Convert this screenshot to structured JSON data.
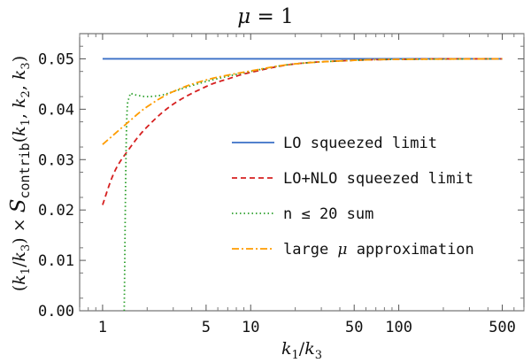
{
  "chart_data": {
    "type": "line",
    "title": "μ = 1",
    "xlabel": "k1/k3",
    "ylabel": "(k1/k3) × S_contrib(k1, k2, k3)",
    "x_scale": "log",
    "xlim": [
      0.7,
      700
    ],
    "ylim": [
      0,
      0.055
    ],
    "x_ticks": [
      1,
      5,
      10,
      50,
      100,
      500
    ],
    "x_tick_labels": [
      "1",
      "5",
      "10",
      "50",
      "100",
      "500"
    ],
    "y_ticks": [
      0.0,
      0.01,
      0.02,
      0.03,
      0.04,
      0.05
    ],
    "y_tick_labels": [
      "0.00",
      "0.01",
      "0.02",
      "0.03",
      "0.04",
      "0.05"
    ],
    "legend_position": "center-right",
    "series": [
      {
        "name": "LO squeezed limit",
        "color": "#3a6fc6",
        "style": "solid",
        "x": [
          1,
          500
        ],
        "y": [
          0.05,
          0.05
        ]
      },
      {
        "name": "LO+NLO squeezed limit",
        "color": "#d62020",
        "style": "dashed",
        "x": [
          1,
          1.2,
          1.5,
          2,
          3,
          5,
          7,
          10,
          20,
          50,
          100,
          200,
          500
        ],
        "y": [
          0.021,
          0.0275,
          0.032,
          0.0365,
          0.041,
          0.0445,
          0.046,
          0.0473,
          0.049,
          0.0497,
          0.0499,
          0.05,
          0.05
        ]
      },
      {
        "name": "n ≤ 20 sum",
        "color": "#2ca02c",
        "style": "dotted",
        "x": [
          1.4,
          1.45,
          1.52,
          1.6,
          1.7,
          2,
          2.5,
          3,
          5,
          10,
          20,
          50,
          100,
          500
        ],
        "y": [
          0.0,
          0.036,
          0.0425,
          0.043,
          0.0428,
          0.0425,
          0.0428,
          0.0435,
          0.0455,
          0.0475,
          0.049,
          0.0497,
          0.0499,
          0.05
        ]
      },
      {
        "name": "large μ approximation",
        "color": "#ff9c00",
        "style": "dashdot",
        "x": [
          1,
          1.5,
          2,
          3,
          5,
          10,
          20,
          50,
          100,
          500
        ],
        "y": [
          0.033,
          0.0375,
          0.0405,
          0.0435,
          0.0458,
          0.0476,
          0.049,
          0.0497,
          0.0499,
          0.05
        ]
      }
    ]
  }
}
